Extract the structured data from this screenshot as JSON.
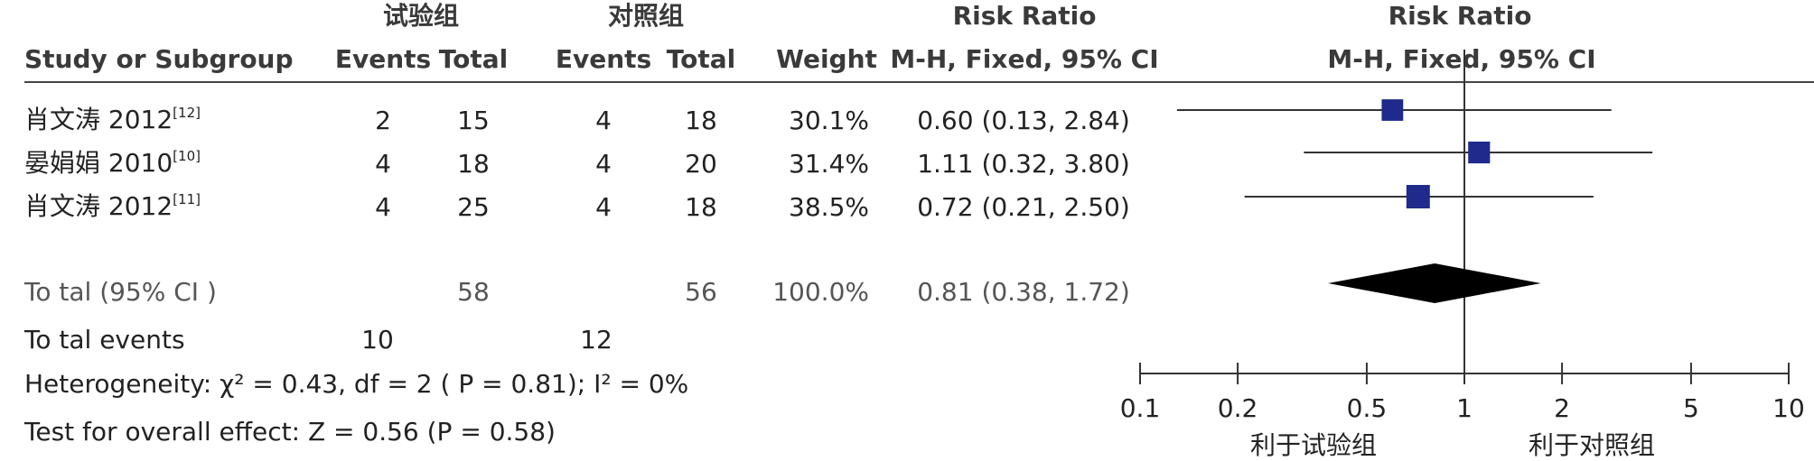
{
  "header": {
    "group_exp": "试验组",
    "group_ctl": "对照组",
    "rr_col_title": "Risk Ratio",
    "rr_plot_title": "Risk Ratio",
    "study_col": "Study or Subgroup",
    "events_label": "Events",
    "total_label": "Total",
    "weight_label": "Weight",
    "method_col": "M-H, Fixed, 95% CI",
    "method_plot": "M-H, Fixed, 95% CI"
  },
  "studies": [
    {
      "name": "肖文涛 2012",
      "ref": "[12]",
      "exp_events": "2",
      "exp_total": "15",
      "ctl_events": "4",
      "ctl_total": "18",
      "weight": "30.1%",
      "ci_text": "0.60 (0.13, 2.84)"
    },
    {
      "name": "晏娟娟 2010",
      "ref": "[10]",
      "exp_events": "4",
      "exp_total": "18",
      "ctl_events": "4",
      "ctl_total": "20",
      "weight": "31.4%",
      "ci_text": "1.11 (0.32, 3.80)"
    },
    {
      "name": "肖文涛 2012",
      "ref": "[11]",
      "exp_events": "4",
      "exp_total": "25",
      "ctl_events": "4",
      "ctl_total": "18",
      "weight": "38.5%",
      "ci_text": "0.72 (0.21, 2.50)"
    }
  ],
  "total": {
    "label": "To tal (95% CI )",
    "exp_total": "58",
    "ctl_total": "56",
    "weight": "100.0%",
    "ci_text": "0.81 (0.38, 1.72)"
  },
  "total_events": {
    "label": "To tal events",
    "exp": "10",
    "ctl": "12"
  },
  "heterogeneity": "Heterogeneity:  χ² = 0.43, df = 2 (  P = 0.81); I² = 0%",
  "overall_effect": "Test for overall effect: Z = 0.56 (P = 0.58)",
  "axis": {
    "favours_exp": "利于试验组",
    "favours_ctl": "利于对照组"
  },
  "colors": {
    "marker": "#1f2a8c",
    "diamond": "#000000",
    "line": "#333333"
  },
  "chart_data": {
    "type": "forest",
    "scale": "log",
    "xlim": [
      0.1,
      10
    ],
    "reference_line": 1,
    "ticks": [
      0.1,
      0.2,
      0.5,
      1,
      2,
      5,
      10
    ],
    "tick_labels": [
      "0.1",
      "0.2",
      "0.5",
      "1",
      "2",
      "5",
      "10"
    ],
    "studies": [
      {
        "rr": 0.6,
        "lo": 0.13,
        "hi": 2.84,
        "weight": 30.1
      },
      {
        "rr": 1.11,
        "lo": 0.32,
        "hi": 3.8,
        "weight": 31.4
      },
      {
        "rr": 0.72,
        "lo": 0.21,
        "hi": 2.5,
        "weight": 38.5
      }
    ],
    "pooled": {
      "rr": 0.81,
      "lo": 0.38,
      "hi": 1.72
    }
  }
}
